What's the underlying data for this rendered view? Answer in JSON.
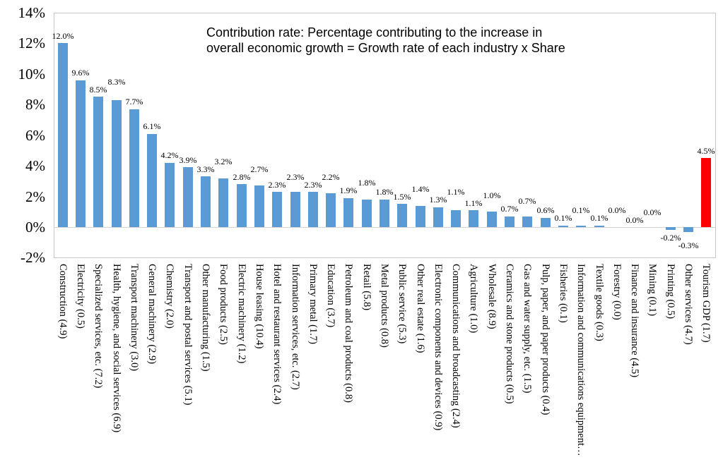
{
  "chart_data": {
    "type": "bar",
    "title": "",
    "annotation": {
      "line1": "Contribution rate: Percentage contributing to the increase in",
      "line2": "overall economic growth = Growth rate of each industry x Share"
    },
    "y_axis": {
      "ticks": [
        "14%",
        "12%",
        "10%",
        "8%",
        "6%",
        "4%",
        "2%",
        "0%",
        "-2%"
      ],
      "ylim": [
        -2,
        14
      ],
      "grid": false
    },
    "legend": "none",
    "bar_color": "#5B9BD5",
    "highlight_color": "#FF0000",
    "highlight_index": 36,
    "categories": [
      "Construction (4.9)",
      "Electricity (0.5)",
      "Specialized services, etc. (7.2)",
      "Health, hygiene, and social services (6.9)",
      "Transport machinery (3.0)",
      "General machinery (2.9)",
      "Chemistry (2.0)",
      "Transport and postal services (5.1)",
      "Other manufacturing (1.5)",
      "Food products (2.5)",
      "Electric machinery (1.2)",
      "House leasing (10.4)",
      "Hotel and restaurant services (2.4)",
      "Information services, etc. (2.7)",
      "Primary metal (1.7)",
      "Education (3.7)",
      "Petroleum and coal products (0.8)",
      "Retail (5.8)",
      "Metal products (0.8)",
      "Public service (5.3)",
      "Other real estate (1.6)",
      "Electronic components and devices (0.9)",
      "Communications and broadcasting (2.4)",
      "Agriculture (1.0)",
      "Wholesale (8.9)",
      "Ceramics and stone products (0.5)",
      "Gas and water supply, etc. (1.5)",
      "Pulp, paper, and paper products (0.4)",
      "Fisheries (0.1)",
      "Information and communications equipment…",
      "Textile goods (0.3)",
      "Forestry (0.0)",
      "Finance and insurance (4.5)",
      "Mining (0.1)",
      "Printing (0.5)",
      "Other services (4.7)",
      "Tourism GDP (1.7)"
    ],
    "values": [
      12.0,
      9.6,
      8.5,
      8.3,
      7.7,
      6.1,
      4.2,
      3.9,
      3.3,
      3.2,
      2.8,
      2.7,
      2.3,
      2.3,
      2.3,
      2.2,
      1.9,
      1.8,
      1.8,
      1.5,
      1.4,
      1.3,
      1.1,
      1.1,
      1.0,
      0.7,
      0.7,
      0.6,
      0.1,
      0.1,
      0.1,
      0.0,
      0.0,
      0.0,
      -0.2,
      -0.3,
      4.5
    ],
    "data_labels": [
      "12.0%",
      "9.6%",
      "8.5%",
      "8.3%",
      "7.7%",
      "6.1%",
      "4.2%",
      "3.9%",
      "3.3%",
      "3.2%",
      "2.8%",
      "2.7%",
      "2.3%",
      "2.3%",
      "2.3%",
      "2.2%",
      "1.9%",
      "1.8%",
      "1.8%",
      "1.5%",
      "1.4%",
      "1.3%",
      "1.1%",
      "1.1%",
      "1.0%",
      "0.7%",
      "0.7%",
      "0.6%",
      "0.1%",
      "0.1%",
      "0.1%",
      "0.0%",
      "0.0%",
      "0.0%",
      "-0.2%",
      "-0.3%",
      "4.5%"
    ]
  }
}
